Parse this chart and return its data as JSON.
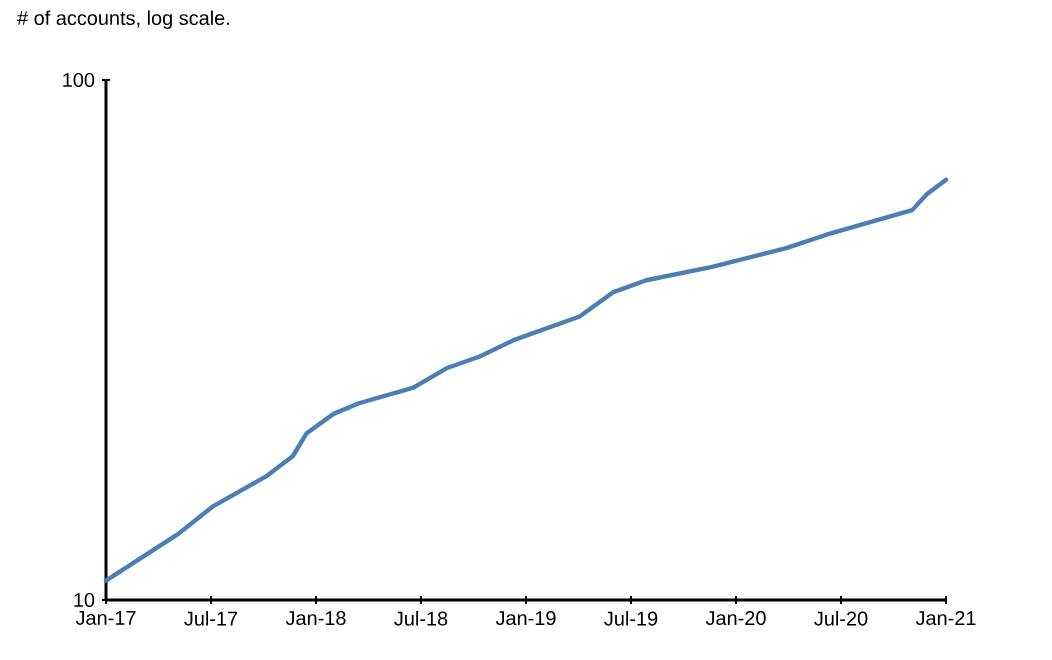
{
  "chart_data": {
    "type": "line",
    "title": "# of accounts, log scale.",
    "log": true,
    "marker": "none",
    "line_style": "solid",
    "x": [
      "2017-01-01",
      "2017-05-05",
      "2017-07-03",
      "2017-10-06",
      "2017-11-21",
      "2017-12-15",
      "2018-02-01",
      "2018-03-15",
      "2018-06-18",
      "2018-08-15",
      "2018-10-12",
      "2018-12-10",
      "2019-04-03",
      "2019-06-01",
      "2019-07-28",
      "2019-11-20",
      "2020-03-28",
      "2020-06-06",
      "2020-11-03",
      "2020-11-28",
      "2021-01-01"
    ],
    "series": [
      {
        "color": "#4a7fb5",
        "values": [
          10.9,
          13.4,
          15.1,
          17.3,
          18.9,
          20.9,
          22.8,
          23.9,
          25.6,
          27.9,
          29.4,
          31.6,
          35.1,
          39.1,
          41.2,
          43.7,
          47.5,
          50.4,
          56.2,
          60.3,
          64.3
        ]
      }
    ],
    "xlim": [
      "2017-01",
      "2021-01"
    ],
    "xticks": [
      {
        "value": "2017-01",
        "label": "Jan-17"
      },
      {
        "value": "2017-07",
        "label": "Jul-17"
      },
      {
        "value": "2018-01",
        "label": "Jan-18"
      },
      {
        "value": "2018-07",
        "label": "Jul-18"
      },
      {
        "value": "2019-01",
        "label": "Jan-19"
      },
      {
        "value": "2019-07",
        "label": "Jul-19"
      },
      {
        "value": "2020-01",
        "label": "Jan-20"
      },
      {
        "value": "2020-07",
        "label": "Jul-20"
      },
      {
        "value": "2021-01",
        "label": "Jan-21"
      }
    ],
    "ylim": [
      10,
      100
    ],
    "yticks": [
      10,
      100
    ]
  }
}
